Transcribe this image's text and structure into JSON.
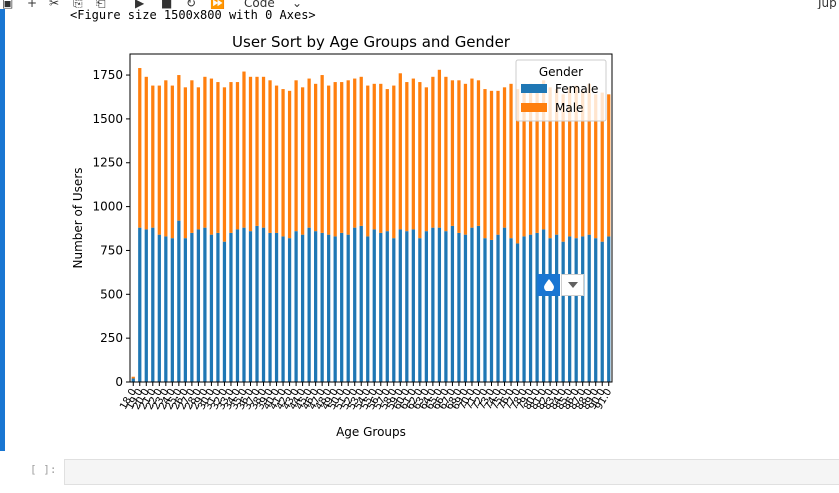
{
  "toolbar": {
    "items": [
      "▣",
      "+",
      "✂",
      "⎘",
      "⎗",
      "▶",
      "■",
      "↻",
      "⏩"
    ],
    "cell_type": "Code",
    "kernel_label": "Jup"
  },
  "output": {
    "figure_text": "<Figure size 1500x800 with 0 Axes>"
  },
  "next_cell": {
    "prompt": "[ ]:"
  },
  "chart_data": {
    "type": "bar",
    "stacked": true,
    "title": "User Sort by Age Groups and Gender",
    "xlabel": "Age Groups",
    "ylabel": "Number of Users",
    "ylim": [
      0,
      1870
    ],
    "yticks": [
      0,
      250,
      500,
      750,
      1000,
      1250,
      1500,
      1750
    ],
    "legend": {
      "title": "Gender",
      "position": "top-right"
    },
    "colors": {
      "Female": "#1f77b4",
      "Male": "#ff7f0e"
    },
    "categories": [
      "18.0",
      "19.0",
      "20.0",
      "21.0",
      "22.0",
      "23.0",
      "24.0",
      "25.0",
      "26.0",
      "27.0",
      "28.0",
      "29.0",
      "30.0",
      "31.0",
      "32.0",
      "33.0",
      "34.0",
      "35.0",
      "36.0",
      "37.0",
      "38.0",
      "39.0",
      "40.0",
      "41.0",
      "42.0",
      "43.0",
      "44.0",
      "45.0",
      "46.0",
      "47.0",
      "48.0",
      "49.0",
      "50.0",
      "51.0",
      "52.0",
      "53.0",
      "54.0",
      "55.0",
      "56.0",
      "57.0",
      "58.0",
      "59.0",
      "60.0",
      "61.0",
      "62.0",
      "63.0",
      "64.0",
      "65.0",
      "66.0",
      "67.0",
      "68.0",
      "69.0",
      "70.0",
      "71.0",
      "72.0",
      "73.0",
      "74.0",
      "75.0",
      "76.0",
      "77.0",
      "78.0",
      "79.0",
      "80.0",
      "81.0",
      "82.0",
      "83.0",
      "84.0",
      "85.0",
      "86.0",
      "87.0",
      "88.0",
      "89.0",
      "90.0",
      "91.0"
    ],
    "series": [
      {
        "name": "Female",
        "values": [
          20,
          880,
          870,
          880,
          840,
          830,
          820,
          920,
          820,
          850,
          870,
          880,
          840,
          850,
          800,
          850,
          870,
          880,
          860,
          890,
          880,
          850,
          850,
          830,
          820,
          860,
          840,
          880,
          860,
          850,
          840,
          830,
          850,
          840,
          880,
          890,
          830,
          870,
          850,
          860,
          820,
          870,
          860,
          870,
          820,
          860,
          880,
          880,
          860,
          890,
          850,
          840,
          880,
          890,
          820,
          810,
          840,
          880,
          820,
          790,
          830,
          840,
          850,
          870,
          820,
          840,
          800,
          830,
          820,
          830,
          840,
          820,
          800,
          830
        ]
      },
      {
        "name": "Male",
        "values": [
          10,
          910,
          870,
          810,
          850,
          890,
          870,
          830,
          860,
          870,
          810,
          860,
          890,
          860,
          880,
          860,
          840,
          890,
          880,
          850,
          860,
          870,
          840,
          840,
          840,
          860,
          840,
          850,
          840,
          900,
          850,
          880,
          860,
          880,
          850,
          850,
          860,
          830,
          850,
          810,
          870,
          890,
          850,
          860,
          890,
          820,
          860,
          900,
          880,
          830,
          870,
          860,
          850,
          830,
          850,
          850,
          820,
          800,
          880,
          880,
          870,
          860,
          840,
          850,
          860,
          830,
          840,
          850,
          870,
          830,
          860,
          820,
          850,
          810
        ]
      }
    ]
  }
}
